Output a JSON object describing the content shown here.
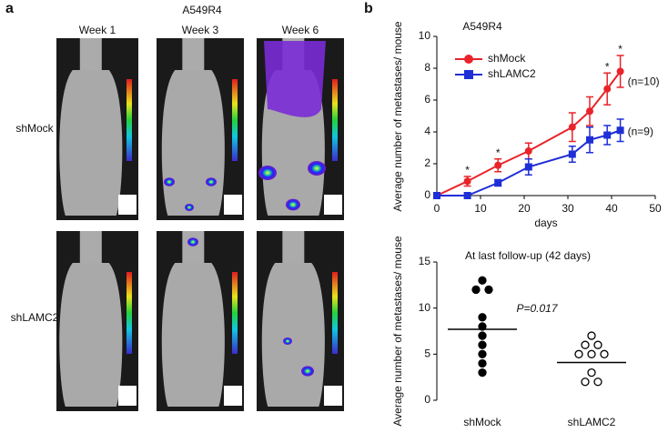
{
  "panel_a": {
    "label": "a",
    "title": "A549R4",
    "columns": [
      "Week 1",
      "Week 3",
      "Week 6"
    ],
    "rows": [
      "shMock",
      "shLAMC2"
    ]
  },
  "chart_data": [
    {
      "type": "line",
      "panel_label": "b",
      "title": "A549R4",
      "x_label": "days",
      "y_label": "Average number of metastases/ mouse",
      "xlim": [
        0,
        50
      ],
      "xticks": [
        0,
        10,
        20,
        30,
        40,
        50
      ],
      "ylim": [
        0,
        10
      ],
      "yticks": [
        0,
        2,
        4,
        6,
        8,
        10
      ],
      "legend": "upper left",
      "series": [
        {
          "name": "shMock",
          "color": "#e8242a",
          "marker": "circle",
          "x": [
            0,
            7,
            14,
            21,
            31,
            35,
            39,
            42
          ],
          "values": [
            0,
            0.9,
            1.9,
            2.8,
            4.3,
            5.3,
            6.7,
            7.8
          ],
          "errors": [
            0,
            0.3,
            0.4,
            0.5,
            0.9,
            0.9,
            1.0,
            1.0
          ],
          "point_labels": [
            null,
            "*",
            "*",
            null,
            null,
            null,
            "*",
            "*"
          ],
          "end_label": "(n=10)"
        },
        {
          "name": "shLAMC2",
          "color": "#1f2fd6",
          "marker": "square",
          "x": [
            0,
            7,
            14,
            21,
            31,
            35,
            39,
            42
          ],
          "values": [
            0,
            0,
            0.8,
            1.8,
            2.6,
            3.5,
            3.8,
            4.1
          ],
          "errors": [
            0,
            0,
            0.2,
            0.5,
            0.5,
            0.8,
            0.6,
            0.7
          ],
          "end_label": "(n=9)"
        }
      ]
    },
    {
      "type": "strip",
      "title": "At last follow-up (42 days)",
      "y_label": "Average number of metastases/ mouse",
      "annotation": "P=0.017",
      "ylim": [
        0,
        15
      ],
      "yticks": [
        0,
        5,
        10,
        15
      ],
      "categories": [
        "shMock",
        "shLAMC2"
      ],
      "series": [
        {
          "name": "shMock",
          "filled": true,
          "values": [
            13,
            12,
            12,
            9,
            8,
            7,
            6,
            5,
            4,
            3
          ],
          "mean": 7.7
        },
        {
          "name": "shLAMC2",
          "filled": false,
          "values": [
            7,
            6,
            6,
            5,
            5,
            5,
            3,
            2,
            2
          ],
          "mean": 4.1
        }
      ]
    }
  ]
}
